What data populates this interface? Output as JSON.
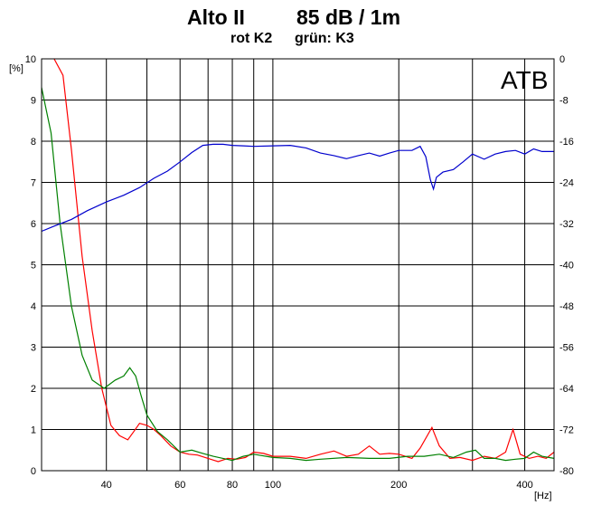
{
  "header": {
    "name": "Alto II",
    "level": "85 dB / 1m",
    "legend_red": "rot K2",
    "legend_green": "grün: K3"
  },
  "chart_data": {
    "type": "line",
    "title": "Alto II      85 dB / 1m",
    "subtitle": "rot K2   grün: K3",
    "watermark": "ATB",
    "x_scale": "log",
    "xlim": [
      28,
      470
    ],
    "x_unit_label": "[Hz]",
    "x_gridlines": [
      40,
      50,
      60,
      70,
      80,
      90,
      100,
      200,
      300,
      400
    ],
    "x_ticks": [
      40,
      60,
      80,
      100,
      200,
      400
    ],
    "y_left_label": "[%]",
    "y_left_lim": [
      0,
      10
    ],
    "y_left_ticks": [
      0,
      1,
      2,
      3,
      4,
      5,
      6,
      7,
      8,
      9,
      10
    ],
    "y_right_lim": [
      -80,
      0
    ],
    "y_right_ticks": [
      0,
      -8,
      -16,
      -24,
      -32,
      -40,
      -48,
      -56,
      -64,
      -72,
      -80
    ],
    "grid": true,
    "series": [
      {
        "name": "rot K2",
        "color": "#ff0000",
        "axis": "left",
        "points": [
          [
            30,
            10
          ],
          [
            31.5,
            9.6
          ],
          [
            33,
            7.8
          ],
          [
            35,
            5.2
          ],
          [
            37,
            3.4
          ],
          [
            39,
            2.0
          ],
          [
            41,
            1.1
          ],
          [
            43,
            0.85
          ],
          [
            45,
            0.75
          ],
          [
            46.5,
            0.95
          ],
          [
            48,
            1.15
          ],
          [
            50,
            1.1
          ],
          [
            52,
            1.0
          ],
          [
            54,
            0.85
          ],
          [
            57,
            0.6
          ],
          [
            60,
            0.45
          ],
          [
            63,
            0.4
          ],
          [
            66,
            0.38
          ],
          [
            70,
            0.3
          ],
          [
            74,
            0.22
          ],
          [
            78,
            0.3
          ],
          [
            82,
            0.28
          ],
          [
            86,
            0.32
          ],
          [
            90,
            0.45
          ],
          [
            95,
            0.42
          ],
          [
            100,
            0.35
          ],
          [
            110,
            0.35
          ],
          [
            120,
            0.3
          ],
          [
            130,
            0.4
          ],
          [
            140,
            0.48
          ],
          [
            150,
            0.35
          ],
          [
            160,
            0.4
          ],
          [
            170,
            0.6
          ],
          [
            180,
            0.4
          ],
          [
            190,
            0.42
          ],
          [
            200,
            0.4
          ],
          [
            215,
            0.3
          ],
          [
            225,
            0.55
          ],
          [
            240,
            1.05
          ],
          [
            250,
            0.6
          ],
          [
            265,
            0.3
          ],
          [
            280,
            0.32
          ],
          [
            300,
            0.25
          ],
          [
            320,
            0.35
          ],
          [
            340,
            0.3
          ],
          [
            360,
            0.45
          ],
          [
            375,
            1.0
          ],
          [
            390,
            0.4
          ],
          [
            410,
            0.3
          ],
          [
            430,
            0.35
          ],
          [
            450,
            0.3
          ],
          [
            470,
            0.45
          ]
        ]
      },
      {
        "name": "grün: K3",
        "color": "#008000",
        "axis": "left",
        "points": [
          [
            28,
            9.3
          ],
          [
            29.5,
            8.2
          ],
          [
            31,
            6.0
          ],
          [
            33,
            4.0
          ],
          [
            35,
            2.8
          ],
          [
            37,
            2.2
          ],
          [
            39.5,
            2.0
          ],
          [
            42,
            2.2
          ],
          [
            44,
            2.3
          ],
          [
            45.5,
            2.5
          ],
          [
            47,
            2.3
          ],
          [
            48.5,
            1.8
          ],
          [
            50,
            1.35
          ],
          [
            53,
            0.95
          ],
          [
            56,
            0.75
          ],
          [
            60,
            0.45
          ],
          [
            64,
            0.5
          ],
          [
            68,
            0.42
          ],
          [
            72,
            0.35
          ],
          [
            76,
            0.3
          ],
          [
            80,
            0.25
          ],
          [
            85,
            0.35
          ],
          [
            90,
            0.4
          ],
          [
            100,
            0.32
          ],
          [
            110,
            0.3
          ],
          [
            120,
            0.25
          ],
          [
            130,
            0.28
          ],
          [
            150,
            0.32
          ],
          [
            170,
            0.3
          ],
          [
            190,
            0.3
          ],
          [
            210,
            0.35
          ],
          [
            230,
            0.35
          ],
          [
            250,
            0.4
          ],
          [
            270,
            0.32
          ],
          [
            290,
            0.45
          ],
          [
            305,
            0.5
          ],
          [
            320,
            0.3
          ],
          [
            340,
            0.3
          ],
          [
            360,
            0.25
          ],
          [
            380,
            0.28
          ],
          [
            400,
            0.3
          ],
          [
            420,
            0.45
          ],
          [
            440,
            0.35
          ],
          [
            470,
            0.3
          ]
        ]
      },
      {
        "name": "",
        "color": "#0000cd",
        "axis": "right",
        "points": [
          [
            28,
            -33.5
          ],
          [
            30,
            -32.5
          ],
          [
            33,
            -31.2
          ],
          [
            36,
            -29.5
          ],
          [
            40,
            -27.8
          ],
          [
            44,
            -26.5
          ],
          [
            48,
            -25.0
          ],
          [
            52,
            -23.2
          ],
          [
            56,
            -21.8
          ],
          [
            60,
            -20.0
          ],
          [
            64,
            -18.2
          ],
          [
            68,
            -16.8
          ],
          [
            72,
            -16.6
          ],
          [
            76,
            -16.6
          ],
          [
            80,
            -16.8
          ],
          [
            85,
            -16.9
          ],
          [
            90,
            -17.0
          ],
          [
            100,
            -16.9
          ],
          [
            110,
            -16.8
          ],
          [
            120,
            -17.3
          ],
          [
            130,
            -18.3
          ],
          [
            140,
            -18.8
          ],
          [
            150,
            -19.4
          ],
          [
            160,
            -18.8
          ],
          [
            170,
            -18.3
          ],
          [
            180,
            -18.9
          ],
          [
            190,
            -18.3
          ],
          [
            200,
            -17.8
          ],
          [
            215,
            -17.8
          ],
          [
            225,
            -17.0
          ],
          [
            232,
            -19.0
          ],
          [
            238,
            -23.5
          ],
          [
            242,
            -25.3
          ],
          [
            246,
            -23.0
          ],
          [
            255,
            -22.0
          ],
          [
            270,
            -21.5
          ],
          [
            285,
            -20.0
          ],
          [
            300,
            -18.5
          ],
          [
            320,
            -19.5
          ],
          [
            340,
            -18.5
          ],
          [
            360,
            -18.0
          ],
          [
            380,
            -17.8
          ],
          [
            400,
            -18.5
          ],
          [
            420,
            -17.5
          ],
          [
            440,
            -18.0
          ],
          [
            470,
            -18.0
          ]
        ]
      }
    ]
  }
}
